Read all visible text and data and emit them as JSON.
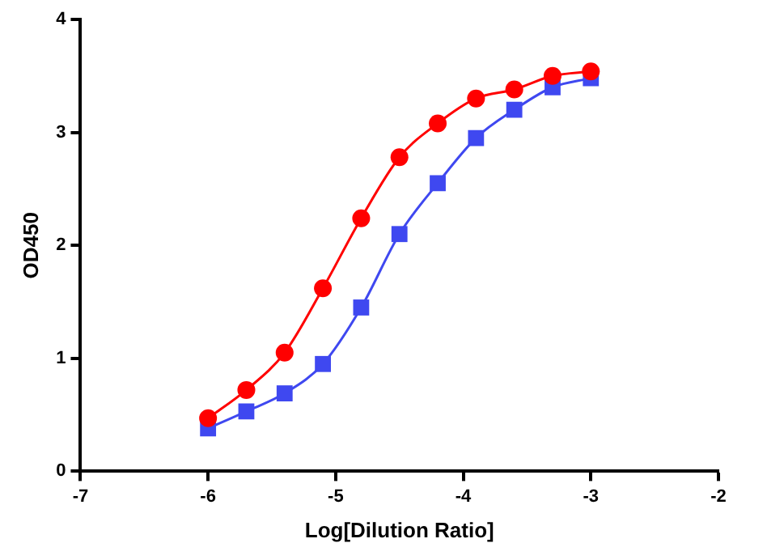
{
  "chart_data": {
    "type": "line",
    "xlabel": "Log[Dilution Ratio]",
    "ylabel": "OD450",
    "x": [
      -6,
      -5.7,
      -5.4,
      -5.1,
      -4.8,
      -4.5,
      -4.2,
      -3.9,
      -3.6,
      -3.3,
      -3.0
    ],
    "series": [
      {
        "color": "#ff0000",
        "marker": "circle",
        "values": [
          0.47,
          0.72,
          1.05,
          1.62,
          2.24,
          2.78,
          3.08,
          3.3,
          3.38,
          3.5,
          3.54
        ]
      },
      {
        "color": "#3f48f0",
        "marker": "square",
        "values": [
          0.38,
          0.53,
          0.69,
          0.95,
          1.45,
          2.1,
          2.55,
          2.95,
          3.2,
          3.4,
          3.48
        ]
      }
    ],
    "xlim": [
      -7,
      -2
    ],
    "xticks": [
      -7,
      -6,
      -5,
      -4,
      -3,
      -2
    ],
    "ylim": [
      0,
      4
    ],
    "yticks": [
      0,
      1,
      2,
      3,
      4
    ],
    "grid": false,
    "legend": false,
    "line_style": "solid"
  }
}
